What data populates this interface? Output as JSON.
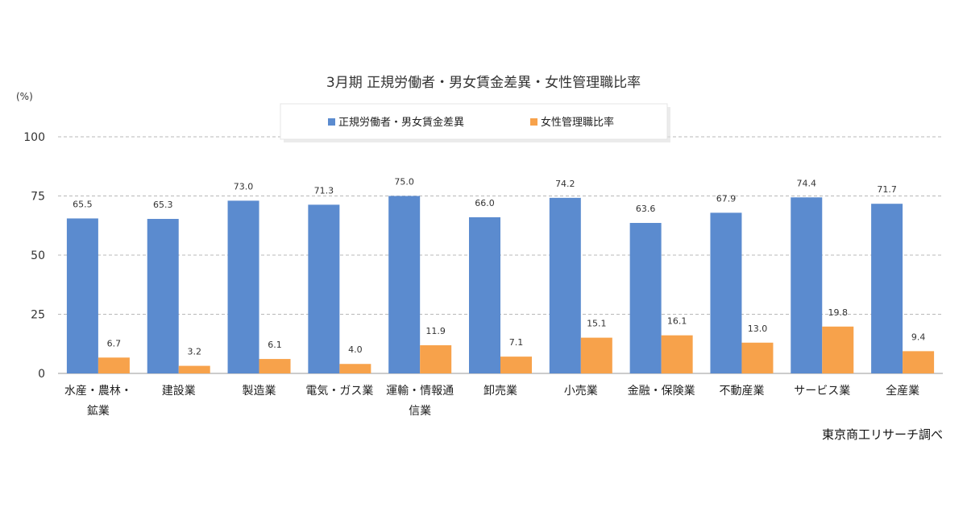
{
  "chart_data": {
    "type": "bar",
    "title": "3月期 正規労働者・男女賃金差異・女性管理職比率",
    "unit_label": "(%)",
    "ylim": [
      0,
      100
    ],
    "yticks": [
      0,
      25,
      50,
      75,
      100
    ],
    "grid": true,
    "legend_position": "top",
    "categories": [
      [
        "水産・農林・",
        "鉱業"
      ],
      [
        "建設業"
      ],
      [
        "製造業"
      ],
      [
        "電気・ガス業"
      ],
      [
        "運輸・情報通",
        "信業"
      ],
      [
        "卸売業"
      ],
      [
        "小売業"
      ],
      [
        "金融・保険業"
      ],
      [
        "不動産業"
      ],
      [
        "サービス業"
      ],
      [
        "全産業"
      ]
    ],
    "series": [
      {
        "name": "正規労働者・男女賃金差異",
        "color": "#5b8bcf",
        "values": [
          65.5,
          65.3,
          73.0,
          71.3,
          75.0,
          66.0,
          74.2,
          63.6,
          67.9,
          74.4,
          71.7
        ],
        "labels": [
          "65.5",
          "65.3",
          "73.0",
          "71.3",
          "75.0",
          "66.0",
          "74.2",
          "63.6",
          "67.9",
          "74.4",
          "71.7"
        ]
      },
      {
        "name": "女性管理職比率",
        "color": "#f7a24b",
        "values": [
          6.7,
          3.2,
          6.1,
          4.0,
          11.9,
          7.1,
          15.1,
          16.1,
          13.0,
          19.8,
          9.4
        ],
        "labels": [
          "6.7",
          "3.2",
          "6.1",
          "4.0",
          "11.9",
          "7.1",
          "15.1",
          "16.1",
          "13.0",
          "19.8",
          "9.4"
        ]
      }
    ],
    "source": "東京商工リサーチ調べ"
  }
}
